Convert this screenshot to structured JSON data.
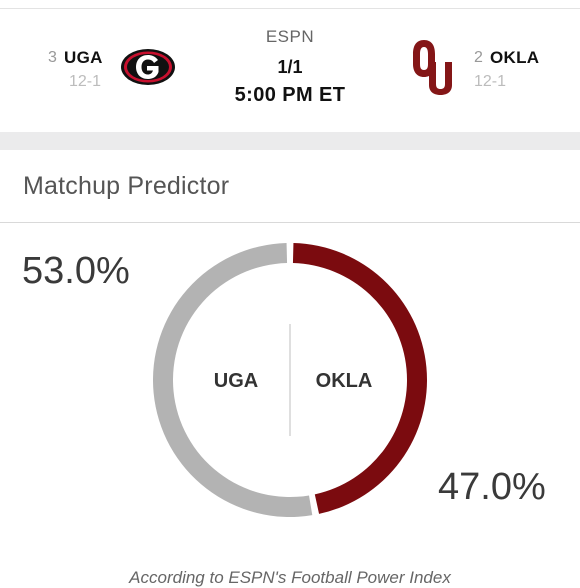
{
  "game": {
    "network": "ESPN",
    "date": "1/1",
    "time": "5:00 PM ET",
    "away": {
      "rank": "3",
      "abbr": "UGA",
      "record": "12-1",
      "logo": "georgia-g-logo",
      "color": "#000000"
    },
    "home": {
      "rank": "2",
      "abbr": "OKLA",
      "record": "12-1",
      "logo": "oklahoma-ou-logo",
      "color": "#841617"
    }
  },
  "predictor": {
    "title": "Matchup Predictor",
    "left_pct": "53.0%",
    "right_pct": "47.0%",
    "left_label": "UGA",
    "right_label": "OKLA",
    "footnote": "According to ESPN's Football Power Index"
  },
  "chart_data": {
    "type": "pie",
    "categories": [
      "UGA",
      "OKLA"
    ],
    "values": [
      53.0,
      47.0
    ],
    "colors": [
      "#b3b3b3",
      "#7b0b0f"
    ]
  }
}
